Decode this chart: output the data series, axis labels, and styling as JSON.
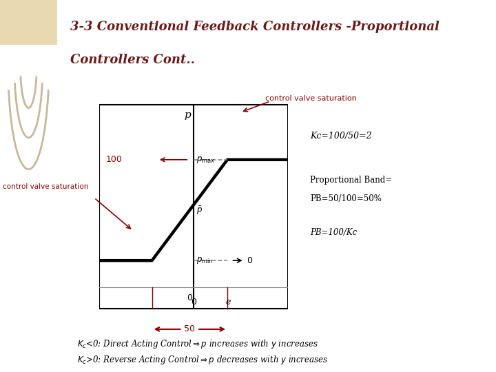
{
  "title_line1": "3-3 Conventional Feedback Controllers -Proportional",
  "title_line2": "Controllers Cont..",
  "title_color": "#6B1A1A",
  "title_fontsize": 13,
  "bg_color": "#FFFFFF",
  "sidebar_color": "#E8D9B0",
  "plot_bg": "#FFFFFF",
  "graph_line_color": "#000000",
  "dashed_color": "#808080",
  "annotation_color": "#8B0000",
  "text_color": "#000000",
  "kc_text": "Kc=100/50=2",
  "pb_text1": "Proportional Band=",
  "pb_text2": "PB=50/100=50%",
  "pb_text3": "PB=100/Kc",
  "label_control_valve_top": "control valve saturation",
  "label_control_valve_left": "control valve saturation",
  "label_p": "p",
  "label_pbar": "$\\bar{p}$",
  "label_pmax": "$p_{\\mathrm{max}}$",
  "label_pmin": "$p_{\\mathrm{min}}$",
  "label_100": "100",
  "label_0_right": "0",
  "label_0_bottom1": "0",
  "label_0_bottom2": "0",
  "label_e": "e",
  "label_50": "50",
  "bottom_text1": "$K_c$<0: Direct Acting Control$\\Rightarrow$$p$ increases with $y$ increases",
  "bottom_text2": "$K_c$>0: Reverse Acting Control$\\Rightarrow$$p$ decreases with $y$ increases"
}
